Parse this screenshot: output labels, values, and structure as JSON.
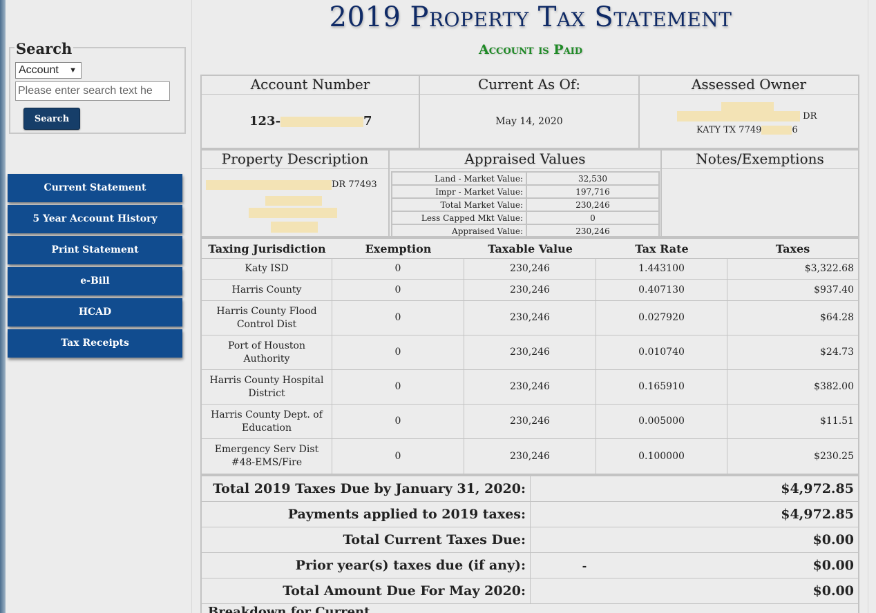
{
  "sidebar": {
    "search": {
      "legend": "Search",
      "select_value": "Account",
      "placeholder": "Please enter search text he",
      "button_label": "Search"
    },
    "nav": [
      {
        "label": "Current Statement"
      },
      {
        "label": "5 Year Account History"
      },
      {
        "label": "Print Statement"
      },
      {
        "label": "e-Bill"
      },
      {
        "label": "HCAD"
      },
      {
        "label": "Tax Receipts"
      }
    ]
  },
  "header": {
    "title": "2019 Property Tax Statement",
    "status": "Account is Paid"
  },
  "account": {
    "number_label": "Account Number",
    "number_prefix": "123-",
    "number_suffix": "7",
    "current_label": "Current As Of:",
    "current_value": "May 14, 2020",
    "owner_label": "Assessed Owner",
    "owner_street_suffix": "DR",
    "owner_city": "KATY TX 7749",
    "owner_zip_suffix": "6"
  },
  "property": {
    "desc_label": "Property Description",
    "desc_zip": "DR 77493",
    "appraised_label": "Appraised Values",
    "notes_label": "Notes/Exemptions",
    "values": [
      {
        "label": "Land - Market Value:",
        "value": "32,530"
      },
      {
        "label": "Impr - Market Value:",
        "value": "197,716"
      },
      {
        "label": "Total Market Value:",
        "value": "230,246"
      },
      {
        "label": "Less Capped Mkt Value:",
        "value": "0"
      },
      {
        "label": "Appraised Value:",
        "value": "230,246"
      }
    ]
  },
  "jurisdictions": {
    "headers": [
      "Taxing Jurisdiction",
      "Exemption",
      "Taxable Value",
      "Tax Rate",
      "Taxes"
    ],
    "rows": [
      [
        "Katy ISD",
        "0",
        "230,246",
        "1.443100",
        "$3,322.68"
      ],
      [
        "Harris County",
        "0",
        "230,246",
        "0.407130",
        "$937.40"
      ],
      [
        "Harris County Flood Control Dist",
        "0",
        "230,246",
        "0.027920",
        "$64.28"
      ],
      [
        "Port of Houston Authority",
        "0",
        "230,246",
        "0.010740",
        "$24.73"
      ],
      [
        "Harris County Hospital District",
        "0",
        "230,246",
        "0.165910",
        "$382.00"
      ],
      [
        "Harris County Dept. of Education",
        "0",
        "230,246",
        "0.005000",
        "$11.51"
      ],
      [
        "Emergency Serv Dist #48-EMS/Fire",
        "0",
        "230,246",
        "0.100000",
        "$230.25"
      ]
    ]
  },
  "totals": [
    {
      "label": "Total 2019 Taxes Due by January 31, 2020:",
      "middle": "",
      "value": "$4,972.85"
    },
    {
      "label": "Payments applied to 2019 taxes:",
      "middle": "",
      "value": "$4,972.85"
    },
    {
      "label": "Total Current Taxes Due:",
      "middle": "",
      "value": "$0.00"
    },
    {
      "label": "Prior year(s) taxes due (if any):",
      "middle": "-",
      "value": "$0.00"
    },
    {
      "label": "Total Amount Due For May 2020:",
      "middle": "",
      "value": "$0.00"
    }
  ],
  "next_section": "Breakdown for Current"
}
